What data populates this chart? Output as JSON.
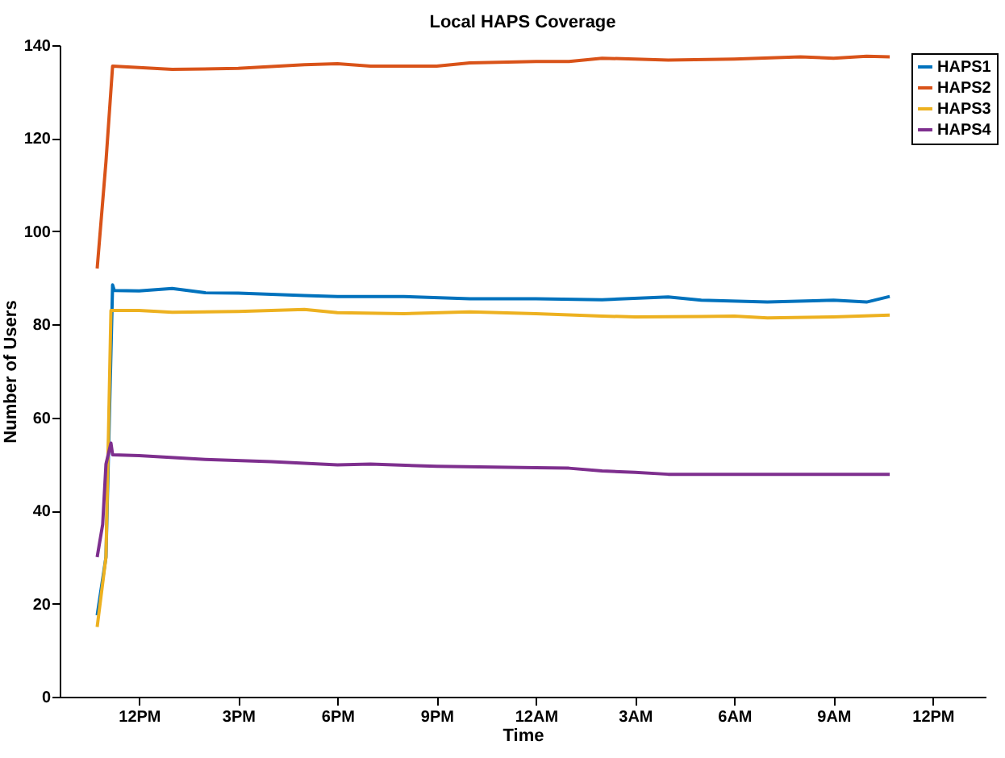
{
  "chart_data": {
    "type": "line",
    "title": "Local HAPS Coverage",
    "xlabel": "Time",
    "ylabel": "Number of Users",
    "xlim": [
      "--01-01T09:36",
      "--01-02T13:36"
    ],
    "xticks": [
      {
        "value": "--01-01T12:00",
        "label": "12PM"
      },
      {
        "value": "--01-01T15:00",
        "label": "3PM"
      },
      {
        "value": "--01-01T18:00",
        "label": "6PM"
      },
      {
        "value": "--01-01T21:00",
        "label": "9PM"
      },
      {
        "value": "--01-02T00:00",
        "label": "12AM"
      },
      {
        "value": "--01-02T03:00",
        "label": "3AM"
      },
      {
        "value": "--01-02T06:00",
        "label": "6AM"
      },
      {
        "value": "--01-02T09:00",
        "label": "9AM"
      },
      {
        "value": "--01-02T12:00",
        "label": "12PM"
      }
    ],
    "ylim": [
      0,
      140
    ],
    "yticks": [
      0,
      20,
      40,
      60,
      80,
      100,
      120,
      140
    ],
    "grid": false,
    "legend": "top right",
    "marker": "none",
    "line_style": "solid",
    "series": [
      {
        "name": "HAPS1",
        "color": "#0072bd",
        "x": [
          "--01-01T10:44",
          "--01-01T11:00",
          "--01-01T11:12",
          "--01-01T11:15",
          "--01-01T12:00",
          "--01-01T13:00",
          "--01-01T14:00",
          "--01-01T15:00",
          "--01-01T17:00",
          "--01-01T18:00",
          "--01-01T20:00",
          "--01-01T22:00",
          "--01-02T00:00",
          "--01-02T02:00",
          "--01-02T04:00",
          "--01-02T05:00",
          "--01-02T07:00",
          "--01-02T09:00",
          "--01-02T10:00",
          "--01-02T10:42"
        ],
        "values": [
          17.5,
          30,
          88.5,
          87.3,
          87.2,
          87.7,
          86.8,
          86.7,
          86.2,
          86,
          86,
          85.5,
          85.5,
          85.3,
          85.9,
          85.2,
          84.8,
          85.2,
          84.8,
          86
        ]
      },
      {
        "name": "HAPS2",
        "color": "#d95319",
        "x": [
          "--01-01T10:44",
          "--01-01T11:00",
          "--01-01T11:12",
          "--01-01T12:00",
          "--01-01T13:00",
          "--01-01T15:00",
          "--01-01T17:00",
          "--01-01T18:00",
          "--01-01T19:00",
          "--01-01T21:00",
          "--01-01T22:00",
          "--01-02T00:00",
          "--01-02T01:00",
          "--01-02T02:00",
          "--01-02T03:00",
          "--01-02T04:00",
          "--01-02T06:00",
          "--01-02T08:00",
          "--01-02T09:00",
          "--01-02T10:00",
          "--01-02T10:42"
        ],
        "values": [
          92,
          115,
          135.5,
          135.2,
          134.8,
          135,
          135.8,
          136,
          135.5,
          135.5,
          136.2,
          136.5,
          136.5,
          137.2,
          137,
          136.8,
          137,
          137.5,
          137.2,
          137.6,
          137.5
        ]
      },
      {
        "name": "HAPS3",
        "color": "#edb120",
        "x": [
          "--01-01T10:44",
          "--01-01T11:00",
          "--01-01T11:09",
          "--01-01T12:00",
          "--01-01T13:00",
          "--01-01T15:00",
          "--01-01T17:00",
          "--01-01T18:00",
          "--01-01T20:00",
          "--01-01T22:00",
          "--01-02T00:00",
          "--01-02T02:00",
          "--01-02T03:00",
          "--01-02T05:00",
          "--01-02T06:00",
          "--01-02T07:00",
          "--01-02T09:00",
          "--01-02T10:42"
        ],
        "values": [
          15,
          30,
          83,
          83,
          82.6,
          82.8,
          83.2,
          82.5,
          82.3,
          82.7,
          82.3,
          81.8,
          81.6,
          81.7,
          81.8,
          81.4,
          81.6,
          82
        ]
      },
      {
        "name": "HAPS4",
        "color": "#7e2f8e",
        "x": [
          "--01-01T10:44",
          "--01-01T10:54",
          "--01-01T11:00",
          "--01-01T11:09",
          "--01-01T11:12",
          "--01-01T12:00",
          "--01-01T14:00",
          "--01-01T16:00",
          "--01-01T18:00",
          "--01-01T19:00",
          "--01-01T21:00",
          "--01-02T00:00",
          "--01-02T01:00",
          "--01-02T02:00",
          "--01-02T03:00",
          "--01-02T04:00",
          "--01-02T06:00",
          "--01-02T08:00",
          "--01-02T10:42"
        ],
        "values": [
          30,
          37,
          50,
          54.5,
          52,
          51.8,
          51,
          50.5,
          49.8,
          50,
          49.5,
          49.2,
          49.1,
          48.5,
          48.2,
          47.8,
          47.8,
          47.8,
          47.8
        ]
      }
    ]
  }
}
